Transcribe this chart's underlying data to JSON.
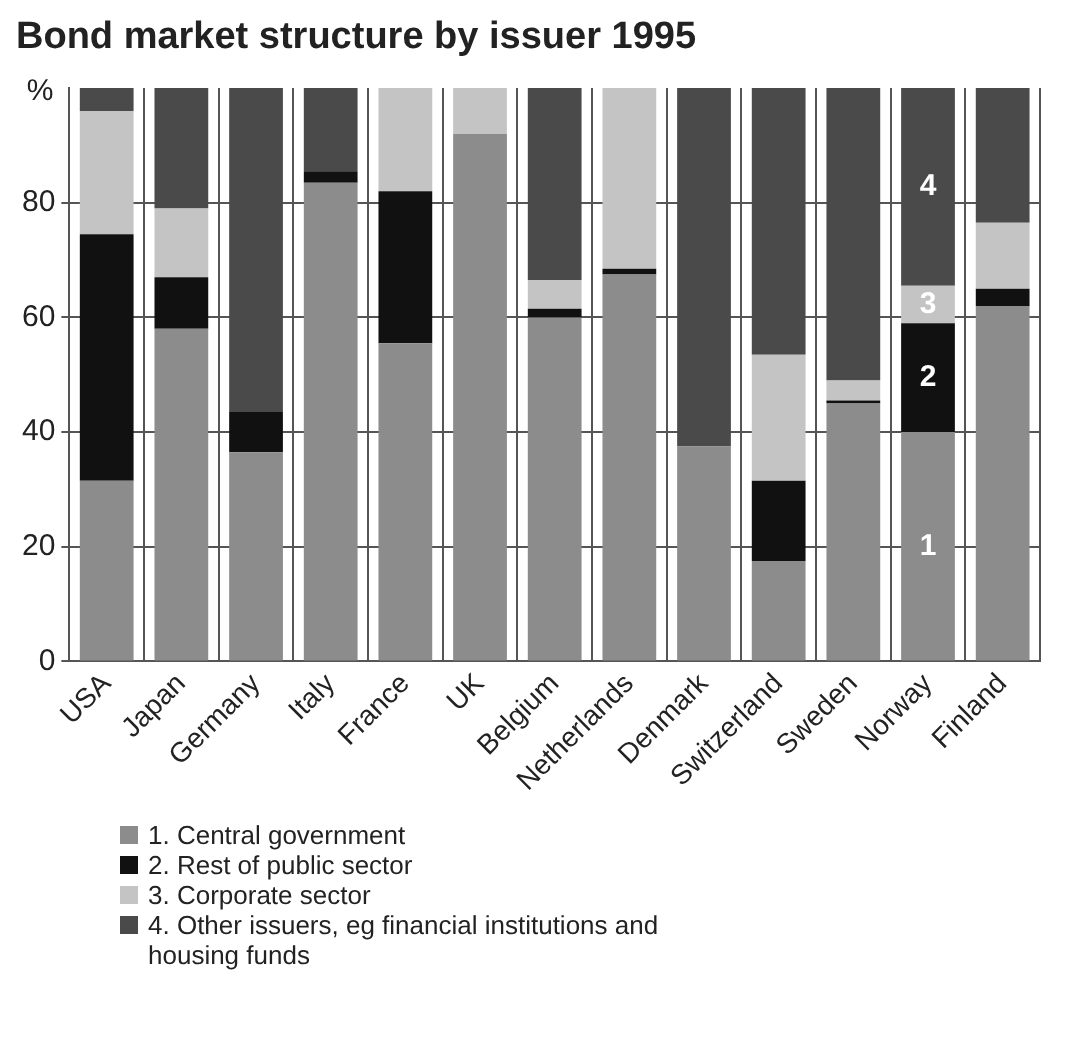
{
  "chart_data": {
    "type": "bar",
    "title": "Bond market structure by issuer 1995",
    "ylabel": "%",
    "categories": [
      "USA",
      "Japan",
      "Germany",
      "Italy",
      "France",
      "UK",
      "Belgium",
      "Netherlands",
      "Denmark",
      "Switzerland",
      "Sweden",
      "Norway",
      "Finland"
    ],
    "stacked": true,
    "series": [
      {
        "name": "1. Central government",
        "color": "#8c8c8c",
        "values": [
          31.5,
          58,
          36.5,
          83.5,
          55.5,
          92,
          60,
          67.5,
          37.5,
          17.5,
          45,
          40,
          62
        ]
      },
      {
        "name": "2. Rest of public sector",
        "color": "#111111",
        "values": [
          43,
          9,
          7,
          2,
          26.5,
          0,
          1.5,
          1,
          0,
          14,
          0.5,
          19,
          3
        ]
      },
      {
        "name": "3. Corporate sector",
        "color": "#c4c4c4",
        "values": [
          21.5,
          12,
          0,
          0,
          18,
          8,
          5,
          31.5,
          0,
          22,
          3.5,
          6.5,
          11.5
        ]
      },
      {
        "name": "4. Other issuers, eg financial institutions and housing funds",
        "color": "#4a4a4a",
        "values": [
          4,
          21,
          56.5,
          14.5,
          0,
          0,
          33.5,
          0,
          62.5,
          46.5,
          51,
          34.5,
          23.5
        ]
      }
    ],
    "ylim": [
      0,
      100
    ],
    "yticks": [
      0,
      20,
      40,
      60,
      80
    ],
    "grid": true,
    "legend": "bottom",
    "annotations": [
      "1",
      "2",
      "3",
      "4"
    ]
  }
}
